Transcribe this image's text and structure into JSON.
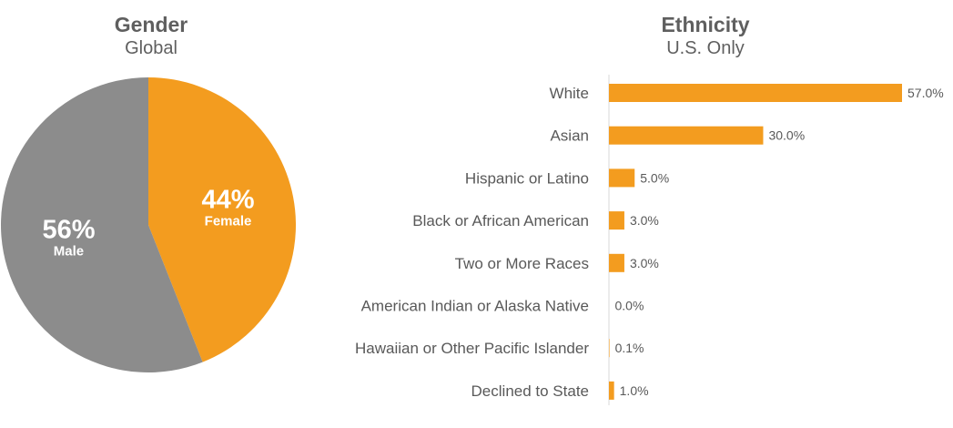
{
  "gender_chart": {
    "title": "Gender",
    "subtitle": "Global"
  },
  "ethnicity_chart": {
    "title": "Ethnicity",
    "subtitle": "U.S. Only"
  },
  "colors": {
    "orange": "#f39c1f",
    "gray": "#8c8c8c",
    "axis": "#d9d9d9"
  },
  "chart_data": [
    {
      "type": "pie",
      "title": "Gender",
      "subtitle": "Global",
      "slices": [
        {
          "label": "Female",
          "value": 44,
          "value_label": "44%",
          "color": "#f39c1f"
        },
        {
          "label": "Male",
          "value": 56,
          "value_label": "56%",
          "color": "#8c8c8c"
        }
      ]
    },
    {
      "type": "bar",
      "orientation": "horizontal",
      "title": "Ethnicity",
      "subtitle": "U.S. Only",
      "categories": [
        "White",
        "Asian",
        "Hispanic or Latino",
        "Black or African American",
        "Two or More Races",
        "American Indian or Alaska Native",
        "Hawaiian or Other Pacific Islander",
        "Declined to State"
      ],
      "values": [
        57.0,
        30.0,
        5.0,
        3.0,
        3.0,
        0.0,
        0.1,
        1.0
      ],
      "value_labels": [
        "57.0%",
        "30.0%",
        "5.0%",
        "3.0%",
        "3.0%",
        "0.0%",
        "0.1%",
        "1.0%"
      ],
      "xlim": [
        0,
        60
      ],
      "grid": false,
      "color": "#f39c1f"
    }
  ]
}
